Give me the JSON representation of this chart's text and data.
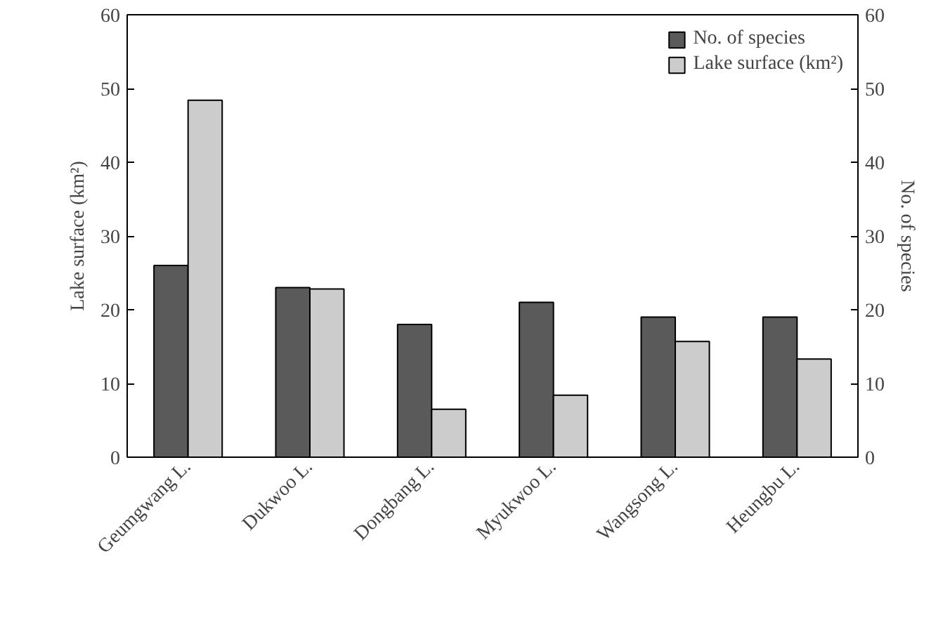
{
  "chart_data": {
    "type": "bar",
    "categories": [
      "Geumgwang L.",
      "Dukwoo L.",
      "Dongbang L.",
      "Myukwoo L.",
      "Wangsong L.",
      "Heungbu L."
    ],
    "series": [
      {
        "name": "No. of species",
        "color": "#5a5a5a",
        "axis": "y2",
        "values": [
          26,
          23,
          18,
          21,
          19,
          19
        ]
      },
      {
        "name": "Lake surface (km²)",
        "color": "#cccccc",
        "values": [
          48.4,
          22.8,
          6.5,
          8.4,
          15.7,
          13.3
        ]
      }
    ],
    "ylabel": "Lake surface (km²)",
    "y2label": "No. of species",
    "ylim": [
      0,
      60
    ],
    "yticks": [
      0,
      10,
      20,
      30,
      40,
      50,
      60
    ],
    "y2lim": [
      0,
      60
    ],
    "y2ticks": [
      0,
      10,
      20,
      30,
      40,
      50,
      60
    ],
    "legend": "top right"
  }
}
